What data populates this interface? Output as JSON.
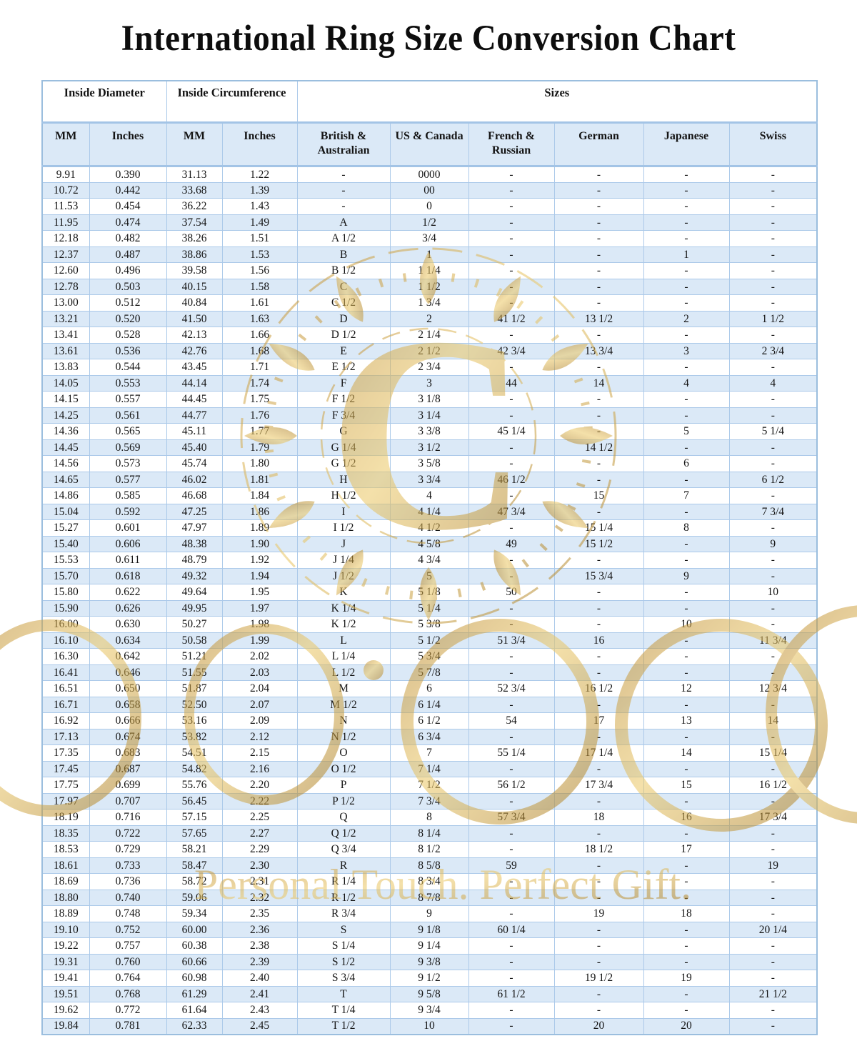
{
  "page": {
    "title": "International Ring Size Conversion Chart"
  },
  "table": {
    "group_headers": [
      {
        "label": "Inside Diameter",
        "colspan": 2
      },
      {
        "label": "Inside Circumference",
        "colspan": 2
      },
      {
        "label": "Sizes",
        "colspan": 6
      }
    ],
    "column_headers": [
      "MM",
      "Inches",
      "MM",
      "Inches",
      "British & Australian",
      "US & Canada",
      "French & Russian",
      "German",
      "Japanese",
      "Swiss"
    ],
    "rows": [
      [
        "9.91",
        "0.390",
        "31.13",
        "1.22",
        "-",
        "0000",
        "-",
        "-",
        "-",
        "-"
      ],
      [
        "10.72",
        "0.442",
        "33.68",
        "1.39",
        "-",
        "00",
        "-",
        "-",
        "-",
        "-"
      ],
      [
        "11.53",
        "0.454",
        "36.22",
        "1.43",
        "-",
        "0",
        "-",
        "-",
        "-",
        "-"
      ],
      [
        "11.95",
        "0.474",
        "37.54",
        "1.49",
        "A",
        "1/2",
        "-",
        "-",
        "-",
        "-"
      ],
      [
        "12.18",
        "0.482",
        "38.26",
        "1.51",
        "A 1/2",
        "3/4",
        "-",
        "-",
        "-",
        "-"
      ],
      [
        "12.37",
        "0.487",
        "38.86",
        "1.53",
        "B",
        "1",
        "-",
        "-",
        "1",
        "-"
      ],
      [
        "12.60",
        "0.496",
        "39.58",
        "1.56",
        "B 1/2",
        "1 1/4",
        "-",
        "-",
        "-",
        "-"
      ],
      [
        "12.78",
        "0.503",
        "40.15",
        "1.58",
        "C",
        "1 1/2",
        "-",
        "-",
        "-",
        "-"
      ],
      [
        "13.00",
        "0.512",
        "40.84",
        "1.61",
        "C 1/2",
        "1 3/4",
        "-",
        "-",
        "-",
        "-"
      ],
      [
        "13.21",
        "0.520",
        "41.50",
        "1.63",
        "D",
        "2",
        "41 1/2",
        "13 1/2",
        "2",
        "1 1/2"
      ],
      [
        "13.41",
        "0.528",
        "42.13",
        "1.66",
        "D 1/2",
        "2 1/4",
        "-",
        "-",
        "-",
        "-"
      ],
      [
        "13.61",
        "0.536",
        "42.76",
        "1.68",
        "E",
        "2 1/2",
        "42 3/4",
        "13 3/4",
        "3",
        "2 3/4"
      ],
      [
        "13.83",
        "0.544",
        "43.45",
        "1.71",
        "E 1/2",
        "2 3/4",
        "-",
        "-",
        "-",
        "-"
      ],
      [
        "14.05",
        "0.553",
        "44.14",
        "1.74",
        "F",
        "3",
        "44",
        "14",
        "4",
        "4"
      ],
      [
        "14.15",
        "0.557",
        "44.45",
        "1.75",
        "F 1/2",
        "3 1/8",
        "-",
        "-",
        "-",
        "-"
      ],
      [
        "14.25",
        "0.561",
        "44.77",
        "1.76",
        "F 3/4",
        "3 1/4",
        "-",
        "-",
        "-",
        "-"
      ],
      [
        "14.36",
        "0.565",
        "45.11",
        "1.77",
        "G",
        "3 3/8",
        "45 1/4",
        "-",
        "5",
        "5 1/4"
      ],
      [
        "14.45",
        "0.569",
        "45.40",
        "1.79",
        "G 1/4",
        "3 1/2",
        "-",
        "14 1/2",
        "-",
        "-"
      ],
      [
        "14.56",
        "0.573",
        "45.74",
        "1.80",
        "G 1/2",
        "3 5/8",
        "-",
        "-",
        "6",
        "-"
      ],
      [
        "14.65",
        "0.577",
        "46.02",
        "1.81",
        "H",
        "3 3/4",
        "46 1/2",
        "-",
        "-",
        "6 1/2"
      ],
      [
        "14.86",
        "0.585",
        "46.68",
        "1.84",
        "H 1/2",
        "4",
        "-",
        "15",
        "7",
        "-"
      ],
      [
        "15.04",
        "0.592",
        "47.25",
        "1.86",
        "I",
        "4 1/4",
        "47 3/4",
        "-",
        "-",
        "7 3/4"
      ],
      [
        "15.27",
        "0.601",
        "47.97",
        "1.89",
        "I 1/2",
        "4 1/2",
        "-",
        "15 1/4",
        "8",
        "-"
      ],
      [
        "15.40",
        "0.606",
        "48.38",
        "1.90",
        "J",
        "4 5/8",
        "49",
        "15 1/2",
        "-",
        "9"
      ],
      [
        "15.53",
        "0.611",
        "48.79",
        "1.92",
        "J 1/4",
        "4 3/4",
        "-",
        "-",
        "-",
        "-"
      ],
      [
        "15.70",
        "0.618",
        "49.32",
        "1.94",
        "J 1/2",
        "5",
        "-",
        "15 3/4",
        "9",
        "-"
      ],
      [
        "15.80",
        "0.622",
        "49.64",
        "1.95",
        "K",
        "5 1/8",
        "50",
        "-",
        "-",
        "10"
      ],
      [
        "15.90",
        "0.626",
        "49.95",
        "1.97",
        "K 1/4",
        "5 1/4",
        "-",
        "-",
        "-",
        "-"
      ],
      [
        "16.00",
        "0.630",
        "50.27",
        "1.98",
        "K 1/2",
        "5 3/8",
        "-",
        "-",
        "10",
        "-"
      ],
      [
        "16.10",
        "0.634",
        "50.58",
        "1.99",
        "L",
        "5 1/2",
        "51 3/4",
        "16",
        "-",
        "11 3/4"
      ],
      [
        "16.30",
        "0.642",
        "51.21",
        "2.02",
        "L 1/4",
        "5 3/4",
        "-",
        "-",
        "-",
        "-"
      ],
      [
        "16.41",
        "0.646",
        "51.55",
        "2.03",
        "L 1/2",
        "5 7/8",
        "-",
        "-",
        "-",
        "-"
      ],
      [
        "16.51",
        "0.650",
        "51.87",
        "2.04",
        "M",
        "6",
        "52 3/4",
        "16 1/2",
        "12",
        "12 3/4"
      ],
      [
        "16.71",
        "0.658",
        "52.50",
        "2.07",
        "M 1/2",
        "6 1/4",
        "-",
        "-",
        "-",
        "-"
      ],
      [
        "16.92",
        "0.666",
        "53.16",
        "2.09",
        "N",
        "6 1/2",
        "54",
        "17",
        "13",
        "14"
      ],
      [
        "17.13",
        "0.674",
        "53.82",
        "2.12",
        "N 1/2",
        "6 3/4",
        "-",
        "-",
        "-",
        "-"
      ],
      [
        "17.35",
        "0.683",
        "54.51",
        "2.15",
        "O",
        "7",
        "55 1/4",
        "17 1/4",
        "14",
        "15 1/4"
      ],
      [
        "17.45",
        "0.687",
        "54.82",
        "2.16",
        "O 1/2",
        "7 1/4",
        "-",
        "-",
        "-",
        "-"
      ],
      [
        "17.75",
        "0.699",
        "55.76",
        "2.20",
        "P",
        "7 1/2",
        "56 1/2",
        "17 3/4",
        "15",
        "16 1/2"
      ],
      [
        "17.97",
        "0.707",
        "56.45",
        "2.22",
        "P 1/2",
        "7 3/4",
        "-",
        "-",
        "-",
        "-"
      ],
      [
        "18.19",
        "0.716",
        "57.15",
        "2.25",
        "Q",
        "8",
        "57 3/4",
        "18",
        "16",
        "17 3/4"
      ],
      [
        "18.35",
        "0.722",
        "57.65",
        "2.27",
        "Q 1/2",
        "8 1/4",
        "-",
        "-",
        "-",
        "-"
      ],
      [
        "18.53",
        "0.729",
        "58.21",
        "2.29",
        "Q 3/4",
        "8 1/2",
        "-",
        "18 1/2",
        "17",
        "-"
      ],
      [
        "18.61",
        "0.733",
        "58.47",
        "2.30",
        "R",
        "8 5/8",
        "59",
        "-",
        "-",
        "19"
      ],
      [
        "18.69",
        "0.736",
        "58.72",
        "2.31",
        "R 1/4",
        "8 3/4",
        "-",
        "-",
        "-",
        "-"
      ],
      [
        "18.80",
        "0.740",
        "59.06",
        "2.32",
        "R 1/2",
        "8 7/8",
        "-",
        "-",
        "-",
        "-"
      ],
      [
        "18.89",
        "0.748",
        "59.34",
        "2.35",
        "R 3/4",
        "9",
        "-",
        "19",
        "18",
        "-"
      ],
      [
        "19.10",
        "0.752",
        "60.00",
        "2.36",
        "S",
        "9 1/8",
        "60 1/4",
        "-",
        "-",
        "20 1/4"
      ],
      [
        "19.22",
        "0.757",
        "60.38",
        "2.38",
        "S 1/4",
        "9 1/4",
        "-",
        "-",
        "-",
        "-"
      ],
      [
        "19.31",
        "0.760",
        "60.66",
        "2.39",
        "S 1/2",
        "9 3/8",
        "-",
        "-",
        "-",
        "-"
      ],
      [
        "19.41",
        "0.764",
        "60.98",
        "2.40",
        "S 3/4",
        "9 1/2",
        "-",
        "19 1/2",
        "19",
        "-"
      ],
      [
        "19.51",
        "0.768",
        "61.29",
        "2.41",
        "T",
        "9 5/8",
        "61 1/2",
        "-",
        "-",
        "21 1/2"
      ],
      [
        "19.62",
        "0.772",
        "61.64",
        "2.43",
        "T 1/4",
        "9 3/4",
        "-",
        "-",
        "-",
        "-"
      ],
      [
        "19.84",
        "0.781",
        "62.33",
        "2.45",
        "T 1/2",
        "10",
        "-",
        "20",
        "20",
        "-"
      ]
    ]
  },
  "watermark": {
    "monogram_letter": "C",
    "text": "Personal Touch. Perfect Gift."
  },
  "colors": {
    "row_stripe_blue": "#dbe9f7",
    "table_border_blue": "#a3c4e6",
    "watermark_gold": "#c9972f",
    "text_black": "#141414"
  }
}
